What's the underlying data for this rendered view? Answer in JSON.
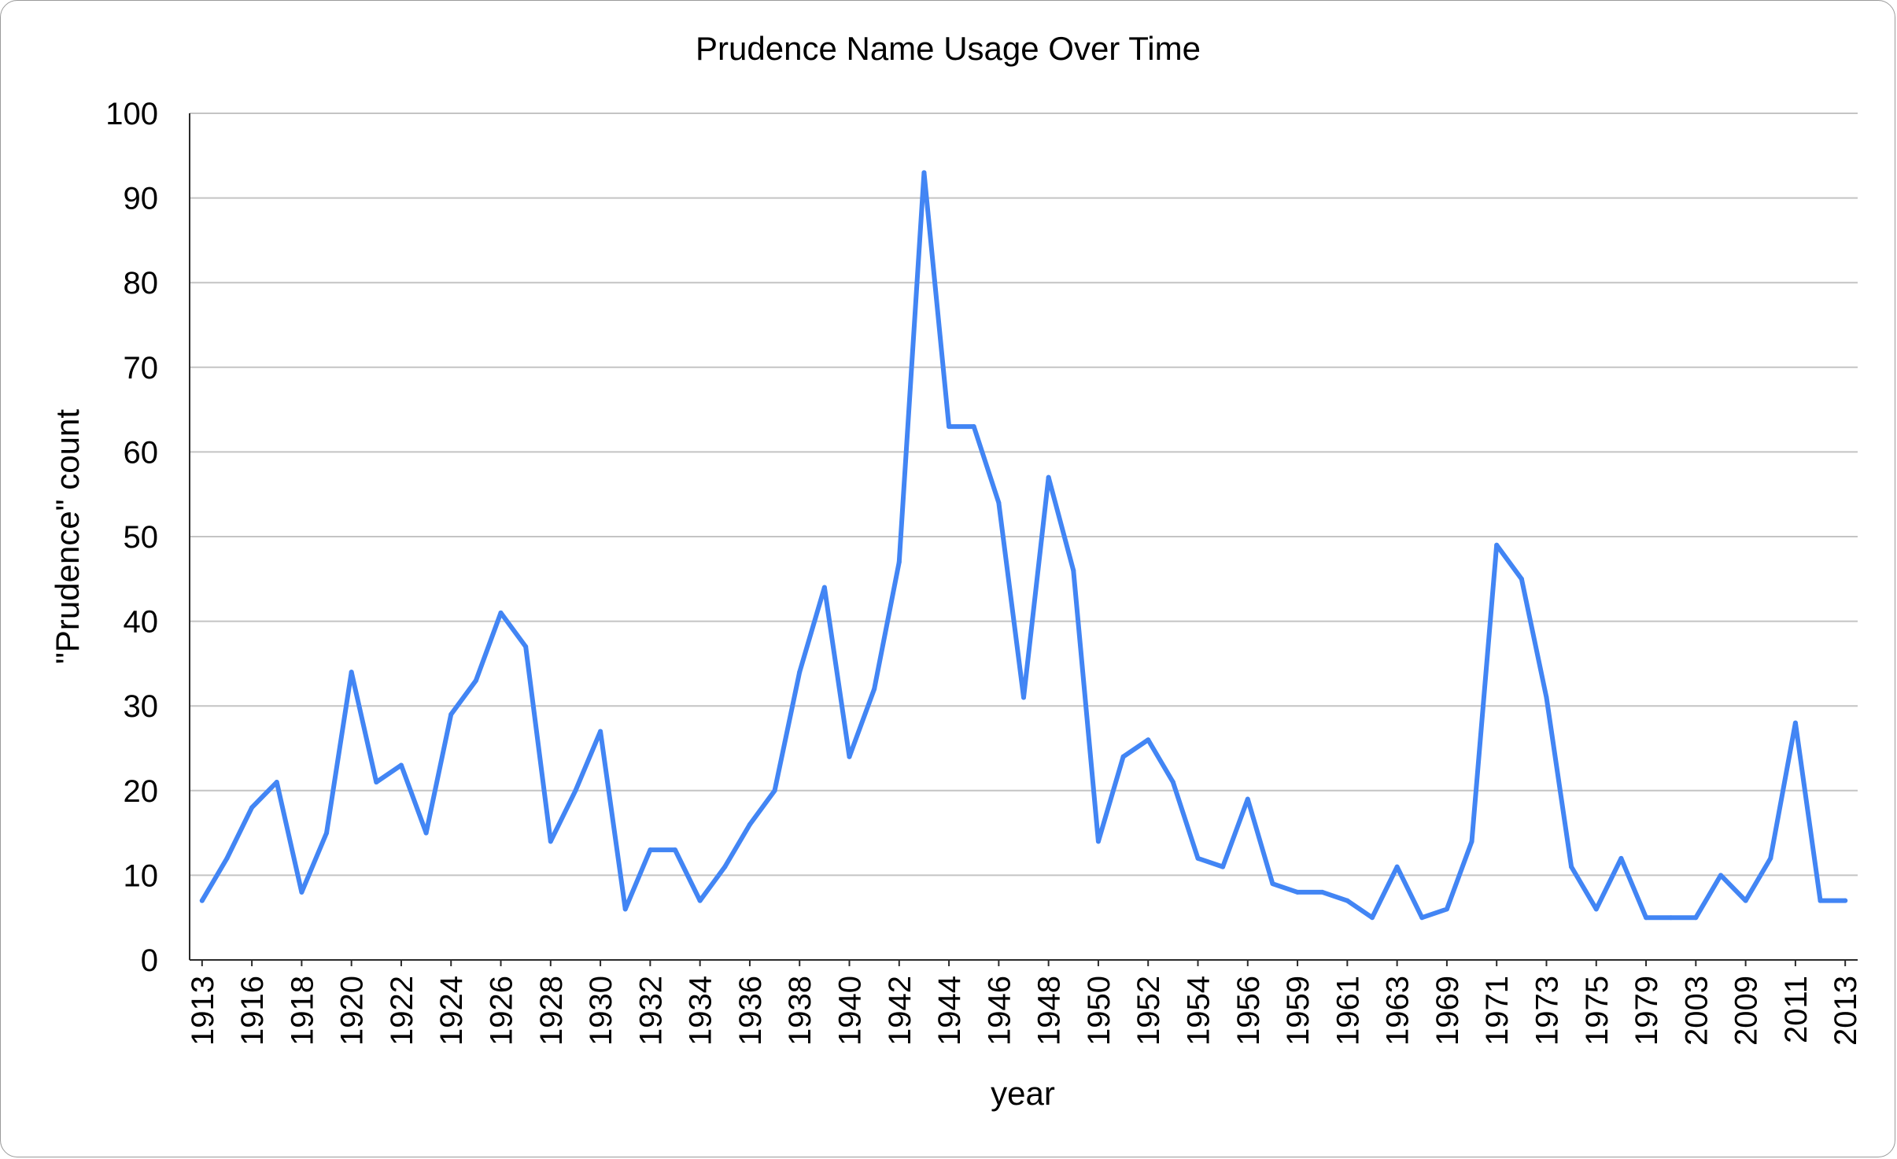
{
  "chart_data": {
    "type": "line",
    "title": "Prudence Name Usage Over Time",
    "xlabel": "year",
    "ylabel": "\"Prudence\" count",
    "ylim": [
      0,
      100
    ],
    "yticks": [
      0,
      10,
      20,
      30,
      40,
      50,
      60,
      70,
      80,
      90,
      100
    ],
    "grid": true,
    "x": [
      "1913",
      "1915",
      "1916",
      "1917",
      "1918",
      "1919",
      "1920",
      "1921",
      "1922",
      "1923",
      "1924",
      "1925",
      "1926",
      "1927",
      "1928",
      "1929",
      "1930",
      "1931",
      "1932",
      "1933",
      "1934",
      "1935",
      "1936",
      "1937",
      "1938",
      "1939",
      "1940",
      "1941",
      "1942",
      "1943",
      "1944",
      "1945",
      "1946",
      "1947",
      "1948",
      "1949",
      "1950",
      "1951",
      "1952",
      "1953",
      "1954",
      "1955",
      "1956",
      "1958",
      "1959",
      "1960",
      "1961",
      "1962",
      "1963",
      "1964",
      "1969",
      "1970",
      "1971",
      "1972",
      "1973",
      "1974",
      "1975",
      "1976",
      "1979",
      "1980",
      "2003",
      "2004",
      "2009",
      "2010",
      "2011",
      "2012",
      "2013"
    ],
    "xtick_labels": [
      "1913",
      "1916",
      "1918",
      "1920",
      "1922",
      "1924",
      "1926",
      "1928",
      "1930",
      "1932",
      "1934",
      "1936",
      "1938",
      "1940",
      "1942",
      "1944",
      "1946",
      "1948",
      "1950",
      "1952",
      "1954",
      "1956",
      "1959",
      "1961",
      "1963",
      "1969",
      "1971",
      "1973",
      "1975",
      "1979",
      "2003",
      "2009",
      "2011",
      "2013"
    ],
    "series": [
      {
        "color": "#4285f4",
        "values": [
          7,
          12,
          18,
          21,
          8,
          15,
          34,
          21,
          23,
          15,
          29,
          33,
          41,
          37,
          14,
          20,
          27,
          6,
          13,
          13,
          7,
          11,
          16,
          20,
          34,
          44,
          24,
          32,
          47,
          93,
          63,
          63,
          54,
          31,
          57,
          46,
          14,
          24,
          26,
          21,
          12,
          11,
          19,
          9,
          8,
          8,
          7,
          5,
          11,
          5,
          6,
          14,
          49,
          45,
          31,
          11,
          6,
          12,
          5,
          5,
          5,
          10,
          7,
          12,
          28,
          7,
          7
        ]
      }
    ]
  }
}
